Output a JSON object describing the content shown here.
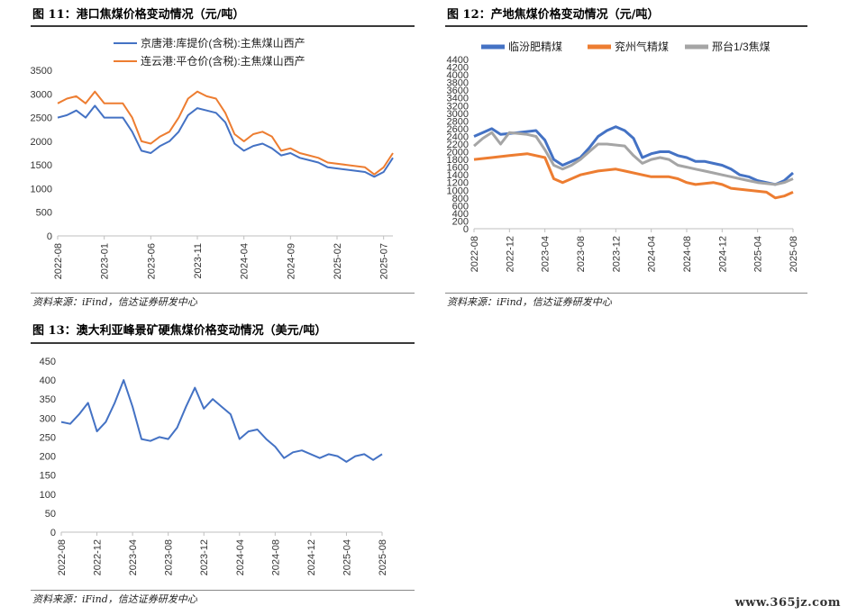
{
  "figures": {
    "fig11_title": "图 11：港口焦煤价格变动情况（元/吨）",
    "fig12_title": "图 12：产地焦煤价格变动情况（元/吨）",
    "fig13_title": "图 13：澳大利亚峰景矿硬焦煤价格变动情况（美元/吨）",
    "source": "资料来源：iFind，信达证券研发中心"
  },
  "watermark": "www.365jz.com",
  "chart_data": [
    {
      "type": "line",
      "yticks": [
        0,
        500,
        1000,
        1500,
        2000,
        2500,
        3000,
        3500
      ],
      "ylim": [
        0,
        3500
      ],
      "xticks": [
        "2022-08",
        "2023-01",
        "2023-06",
        "2023-11",
        "2024-04",
        "2024-09",
        "2025-02",
        "2025-07"
      ],
      "xrange": [
        "2022-08",
        "2025-08"
      ],
      "legend_position": "top",
      "grid": false,
      "series": [
        {
          "name": "京唐港:库提价(含税):主焦煤山西产",
          "color": "#4472C4",
          "points": [
            [
              "2022-08",
              2500
            ],
            [
              "2022-09",
              2550
            ],
            [
              "2022-10",
              2650
            ],
            [
              "2022-11",
              2500
            ],
            [
              "2022-12",
              2750
            ],
            [
              "2023-01",
              2500
            ],
            [
              "2023-03",
              2500
            ],
            [
              "2023-04",
              2200
            ],
            [
              "2023-05",
              1800
            ],
            [
              "2023-06",
              1750
            ],
            [
              "2023-07",
              1900
            ],
            [
              "2023-08",
              2000
            ],
            [
              "2023-09",
              2200
            ],
            [
              "2023-10",
              2550
            ],
            [
              "2023-11",
              2700
            ],
            [
              "2023-12",
              2650
            ],
            [
              "2024-01",
              2600
            ],
            [
              "2024-02",
              2400
            ],
            [
              "2024-03",
              1950
            ],
            [
              "2024-04",
              1800
            ],
            [
              "2024-05",
              1900
            ],
            [
              "2024-06",
              1950
            ],
            [
              "2024-07",
              1850
            ],
            [
              "2024-08",
              1700
            ],
            [
              "2024-09",
              1750
            ],
            [
              "2024-10",
              1650
            ],
            [
              "2024-11",
              1600
            ],
            [
              "2024-12",
              1550
            ],
            [
              "2025-01",
              1450
            ],
            [
              "2025-03",
              1400
            ],
            [
              "2025-05",
              1350
            ],
            [
              "2025-06",
              1250
            ],
            [
              "2025-07",
              1350
            ],
            [
              "2025-08",
              1650
            ]
          ]
        },
        {
          "name": "连云港:平仓价(含税):主焦煤山西产",
          "color": "#ED7D31",
          "points": [
            [
              "2022-08",
              2800
            ],
            [
              "2022-09",
              2900
            ],
            [
              "2022-10",
              2950
            ],
            [
              "2022-11",
              2800
            ],
            [
              "2022-12",
              3050
            ],
            [
              "2023-01",
              2800
            ],
            [
              "2023-03",
              2800
            ],
            [
              "2023-04",
              2500
            ],
            [
              "2023-05",
              2000
            ],
            [
              "2023-06",
              1950
            ],
            [
              "2023-07",
              2100
            ],
            [
              "2023-08",
              2200
            ],
            [
              "2023-09",
              2500
            ],
            [
              "2023-10",
              2900
            ],
            [
              "2023-11",
              3050
            ],
            [
              "2023-12",
              2950
            ],
            [
              "2024-01",
              2900
            ],
            [
              "2024-02",
              2600
            ],
            [
              "2024-03",
              2150
            ],
            [
              "2024-04",
              2000
            ],
            [
              "2024-05",
              2150
            ],
            [
              "2024-06",
              2200
            ],
            [
              "2024-07",
              2100
            ],
            [
              "2024-08",
              1800
            ],
            [
              "2024-09",
              1850
            ],
            [
              "2024-10",
              1750
            ],
            [
              "2024-11",
              1700
            ],
            [
              "2024-12",
              1650
            ],
            [
              "2025-01",
              1550
            ],
            [
              "2025-03",
              1500
            ],
            [
              "2025-05",
              1450
            ],
            [
              "2025-06",
              1300
            ],
            [
              "2025-07",
              1450
            ],
            [
              "2025-08",
              1750
            ]
          ]
        }
      ]
    },
    {
      "type": "line",
      "yticks": [
        0,
        200,
        400,
        600,
        800,
        1000,
        1200,
        1400,
        1600,
        1800,
        2000,
        2200,
        2400,
        2600,
        2800,
        3000,
        3200,
        3400,
        3600,
        3800,
        4000,
        4200,
        4400
      ],
      "ylim": [
        0,
        4400
      ],
      "xticks": [
        "2022-08",
        "2022-12",
        "2023-04",
        "2023-08",
        "2023-12",
        "2024-04",
        "2024-08",
        "2024-12",
        "2025-04",
        "2025-08"
      ],
      "xrange": [
        "2022-08",
        "2025-08"
      ],
      "legend_position": "top",
      "grid": false,
      "series": [
        {
          "name": "临汾肥精煤",
          "color": "#4472C4",
          "points": [
            [
              "2022-08",
              2400
            ],
            [
              "2022-09",
              2500
            ],
            [
              "2022-10",
              2600
            ],
            [
              "2022-11",
              2450
            ],
            [
              "2023-01",
              2500
            ],
            [
              "2023-03",
              2550
            ],
            [
              "2023-04",
              2300
            ],
            [
              "2023-05",
              1800
            ],
            [
              "2023-06",
              1650
            ],
            [
              "2023-07",
              1750
            ],
            [
              "2023-08",
              1850
            ],
            [
              "2023-09",
              2100
            ],
            [
              "2023-10",
              2400
            ],
            [
              "2023-11",
              2550
            ],
            [
              "2023-12",
              2650
            ],
            [
              "2024-01",
              2550
            ],
            [
              "2024-02",
              2350
            ],
            [
              "2024-03",
              1850
            ],
            [
              "2024-04",
              1950
            ],
            [
              "2024-05",
              2000
            ],
            [
              "2024-06",
              2000
            ],
            [
              "2024-07",
              1900
            ],
            [
              "2024-08",
              1850
            ],
            [
              "2024-09",
              1750
            ],
            [
              "2024-10",
              1750
            ],
            [
              "2024-11",
              1700
            ],
            [
              "2024-12",
              1650
            ],
            [
              "2025-01",
              1550
            ],
            [
              "2025-02",
              1400
            ],
            [
              "2025-03",
              1350
            ],
            [
              "2025-04",
              1250
            ],
            [
              "2025-05",
              1200
            ],
            [
              "2025-06",
              1150
            ],
            [
              "2025-07",
              1250
            ],
            [
              "2025-08",
              1450
            ]
          ]
        },
        {
          "name": "兖州气精煤",
          "color": "#ED7D31",
          "points": [
            [
              "2022-08",
              1800
            ],
            [
              "2022-10",
              1850
            ],
            [
              "2022-12",
              1900
            ],
            [
              "2023-02",
              1950
            ],
            [
              "2023-04",
              1850
            ],
            [
              "2023-05",
              1300
            ],
            [
              "2023-06",
              1200
            ],
            [
              "2023-07",
              1300
            ],
            [
              "2023-08",
              1400
            ],
            [
              "2023-10",
              1500
            ],
            [
              "2023-12",
              1550
            ],
            [
              "2024-01",
              1500
            ],
            [
              "2024-03",
              1400
            ],
            [
              "2024-04",
              1350
            ],
            [
              "2024-06",
              1350
            ],
            [
              "2024-07",
              1300
            ],
            [
              "2024-08",
              1200
            ],
            [
              "2024-09",
              1150
            ],
            [
              "2024-11",
              1200
            ],
            [
              "2024-12",
              1150
            ],
            [
              "2025-01",
              1050
            ],
            [
              "2025-03",
              1000
            ],
            [
              "2025-05",
              950
            ],
            [
              "2025-06",
              800
            ],
            [
              "2025-07",
              850
            ],
            [
              "2025-08",
              950
            ]
          ]
        },
        {
          "name": "邢台1/3焦煤",
          "color": "#A5A5A5",
          "points": [
            [
              "2022-08",
              2150
            ],
            [
              "2022-09",
              2350
            ],
            [
              "2022-10",
              2500
            ],
            [
              "2022-11",
              2200
            ],
            [
              "2022-12",
              2500
            ],
            [
              "2023-02",
              2450
            ],
            [
              "2023-03",
              2400
            ],
            [
              "2023-04",
              2050
            ],
            [
              "2023-05",
              1650
            ],
            [
              "2023-06",
              1550
            ],
            [
              "2023-07",
              1650
            ],
            [
              "2023-08",
              1800
            ],
            [
              "2023-09",
              2000
            ],
            [
              "2023-10",
              2200
            ],
            [
              "2023-11",
              2200
            ],
            [
              "2024-01",
              2150
            ],
            [
              "2024-02",
              1900
            ],
            [
              "2024-03",
              1700
            ],
            [
              "2024-04",
              1800
            ],
            [
              "2024-05",
              1850
            ],
            [
              "2024-06",
              1800
            ],
            [
              "2024-07",
              1650
            ],
            [
              "2024-08",
              1600
            ],
            [
              "2024-09",
              1550
            ],
            [
              "2024-10",
              1500
            ],
            [
              "2024-11",
              1450
            ],
            [
              "2024-12",
              1400
            ],
            [
              "2025-01",
              1350
            ],
            [
              "2025-02",
              1300
            ],
            [
              "2025-03",
              1250
            ],
            [
              "2025-04",
              1200
            ],
            [
              "2025-06",
              1150
            ],
            [
              "2025-07",
              1200
            ],
            [
              "2025-08",
              1300
            ]
          ]
        }
      ]
    },
    {
      "type": "line",
      "yticks": [
        0,
        50,
        100,
        150,
        200,
        250,
        300,
        350,
        400,
        450
      ],
      "ylim": [
        0,
        450
      ],
      "xticks": [
        "2022-08",
        "2022-12",
        "2023-04",
        "2023-08",
        "2023-12",
        "2024-04",
        "2024-08",
        "2024-12",
        "2025-04",
        "2025-08"
      ],
      "xrange": [
        "2022-08",
        "2025-08"
      ],
      "grid": false,
      "series": [
        {
          "color": "#4472C4",
          "points": [
            [
              "2022-08",
              290
            ],
            [
              "2022-09",
              285
            ],
            [
              "2022-10",
              310
            ],
            [
              "2022-11",
              340
            ],
            [
              "2022-12",
              265
            ],
            [
              "2023-01",
              290
            ],
            [
              "2023-02",
              340
            ],
            [
              "2023-03",
              400
            ],
            [
              "2023-04",
              330
            ],
            [
              "2023-05",
              245
            ],
            [
              "2023-06",
              240
            ],
            [
              "2023-07",
              250
            ],
            [
              "2023-08",
              245
            ],
            [
              "2023-09",
              275
            ],
            [
              "2023-10",
              330
            ],
            [
              "2023-11",
              380
            ],
            [
              "2023-12",
              325
            ],
            [
              "2024-01",
              350
            ],
            [
              "2024-02",
              330
            ],
            [
              "2024-03",
              310
            ],
            [
              "2024-04",
              245
            ],
            [
              "2024-05",
              265
            ],
            [
              "2024-06",
              270
            ],
            [
              "2024-07",
              245
            ],
            [
              "2024-08",
              225
            ],
            [
              "2024-09",
              195
            ],
            [
              "2024-10",
              210
            ],
            [
              "2024-11",
              215
            ],
            [
              "2024-12",
              205
            ],
            [
              "2025-01",
              195
            ],
            [
              "2025-02",
              205
            ],
            [
              "2025-03",
              200
            ],
            [
              "2025-04",
              185
            ],
            [
              "2025-05",
              200
            ],
            [
              "2025-06",
              205
            ],
            [
              "2025-07",
              190
            ],
            [
              "2025-08",
              205
            ]
          ]
        }
      ]
    }
  ]
}
